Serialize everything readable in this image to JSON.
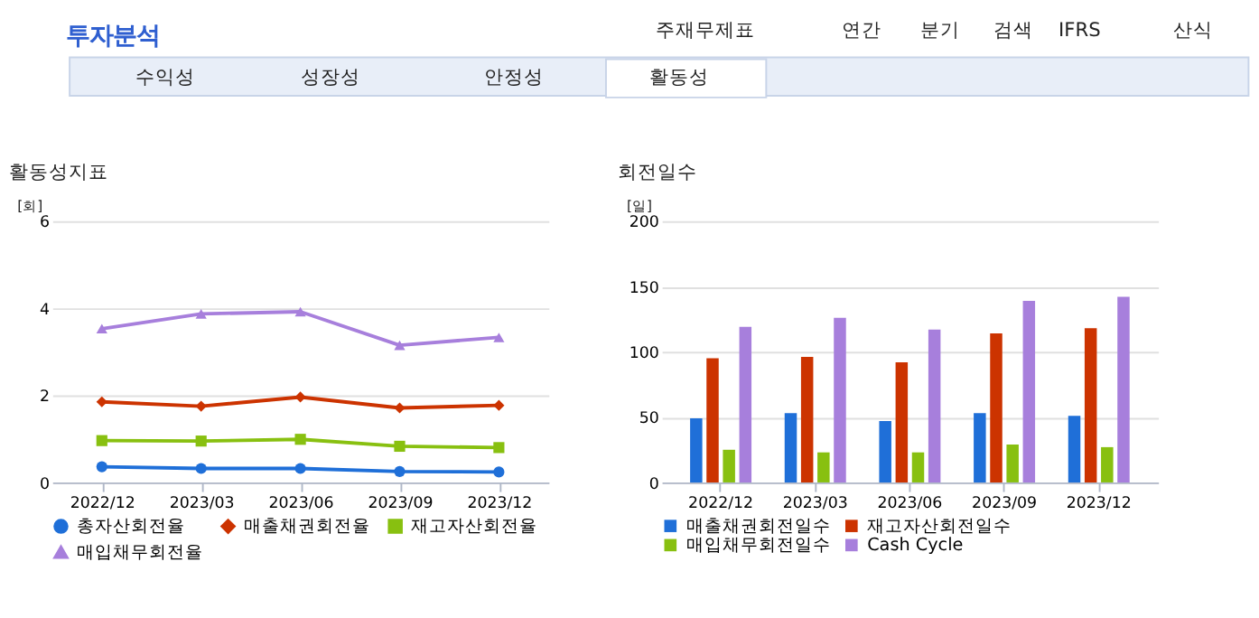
{
  "chart_data": [
    {
      "type": "other",
      "title": "투자분석",
      "annotations": [
        "주재무제표",
        "연간",
        "분기",
        "검색",
        "IFRS",
        "산식",
        "수익성",
        "성장성",
        "안정성",
        "활동성"
      ]
    },
    {
      "type": "line",
      "title": "활동성지표",
      "ylabel": "[회]",
      "categories": [
        "2022/12",
        "2023/03",
        "2023/06",
        "2023/09",
        "2023/12"
      ],
      "ylim": [
        0,
        6
      ],
      "yticks": [
        0,
        2,
        4,
        6
      ],
      "grid": "y",
      "legend": "bottom",
      "series": [
        {
          "name": "총자산회전율",
          "color": "#1f6fd8",
          "marker": "circle",
          "values": [
            0.36,
            0.32,
            0.32,
            0.25,
            0.24
          ]
        },
        {
          "name": "매출채권회전율",
          "color": "#cc3300",
          "marker": "diamond",
          "values": [
            1.85,
            1.75,
            1.96,
            1.71,
            1.77
          ]
        },
        {
          "name": "재고자산회전율",
          "color": "#88c010",
          "marker": "square",
          "values": [
            0.96,
            0.95,
            0.99,
            0.83,
            0.8
          ]
        },
        {
          "name": "매입채무회전율",
          "color": "#a77fdc",
          "marker": "triangle",
          "values": [
            3.53,
            3.87,
            3.92,
            3.15,
            3.33
          ]
        }
      ]
    },
    {
      "type": "bar",
      "title": "회전일수",
      "ylabel": "[일]",
      "categories": [
        "2022/12",
        "2023/03",
        "2023/06",
        "2023/09",
        "2023/12"
      ],
      "ylim": [
        0,
        200
      ],
      "yticks": [
        0,
        50,
        100,
        150,
        200
      ],
      "grid": "y",
      "legend": "bottom",
      "series": [
        {
          "name": "매출채권회전일수",
          "color": "#1f6fd8",
          "values": [
            49,
            53,
            47,
            53,
            51
          ]
        },
        {
          "name": "재고자산회전일수",
          "color": "#cc3300",
          "values": [
            95,
            96,
            92,
            114,
            118
          ]
        },
        {
          "name": "매입채무회전일수",
          "color": "#88c010",
          "values": [
            25,
            23,
            23,
            29,
            27
          ]
        },
        {
          "name": "Cash Cycle",
          "color": "#a77fdc",
          "values": [
            119,
            126,
            117,
            139,
            142
          ]
        }
      ]
    }
  ]
}
